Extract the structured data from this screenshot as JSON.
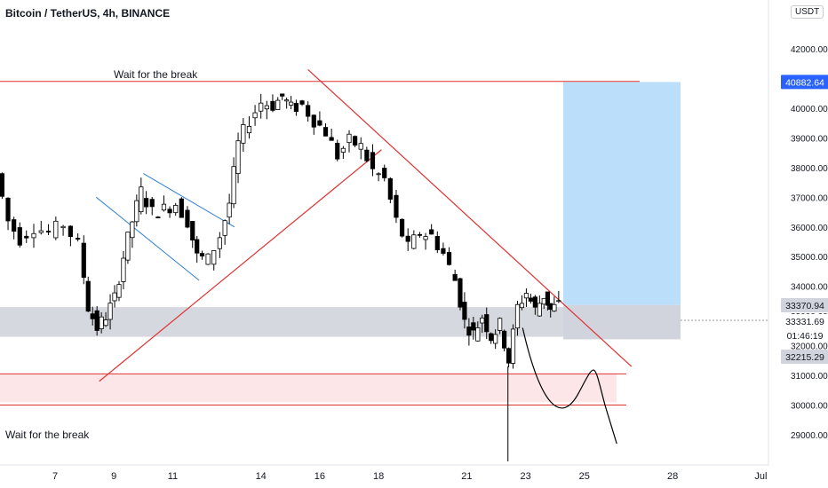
{
  "header": {
    "title": "Bitcoin / TetherUS, 4h, BINANCE"
  },
  "price_scale": {
    "unit": "USDT"
  },
  "colors": {
    "up_candle": "#ffffff",
    "down_candle": "#000000",
    "candle_border": "#000000",
    "trendline": "#e03030",
    "channel": "#2d7fd3",
    "target_box": "#bbdefb",
    "stop_box": "#d1d4dc",
    "support_zone": "#fde3e4"
  },
  "annotations": {
    "top_note": "Wait for the break",
    "bottom_note": "Wait for the break"
  },
  "price_labels": {
    "target": "40882.64",
    "entry": "33370.94",
    "current": "33331.69",
    "countdown": "01:46:19",
    "stop": "32215.29"
  },
  "chart_data": {
    "type": "candlestick",
    "title": "Bitcoin / TetherUS, 4h, BINANCE",
    "y_unit": "USDT",
    "ylim": [
      28800,
      43000
    ],
    "yticks": [
      "29000.00",
      "30000.00",
      "31000.00",
      "32000.00",
      "33000.00",
      "34000.00",
      "35000.00",
      "36000.00",
      "37000.00",
      "38000.00",
      "39000.00",
      "40000.00",
      "41000.00",
      "42000.00"
    ],
    "xticks": [
      {
        "label": "7",
        "day": 7
      },
      {
        "label": "9",
        "day": 9
      },
      {
        "label": "11",
        "day": 11
      },
      {
        "label": "14",
        "day": 14
      },
      {
        "label": "16",
        "day": 16
      },
      {
        "label": "18",
        "day": 18
      },
      {
        "label": "21",
        "day": 21
      },
      {
        "label": "23",
        "day": 23
      },
      {
        "label": "25",
        "day": 25
      },
      {
        "label": "28",
        "day": 28
      },
      {
        "label": "Jul",
        "day": 31
      }
    ],
    "candles_daily_path": [
      [
        5.1,
        37800
      ],
      [
        5.5,
        36200
      ],
      [
        5.9,
        35600
      ],
      [
        6.4,
        36000
      ],
      [
        6.9,
        35800
      ],
      [
        7.4,
        36100
      ],
      [
        7.9,
        35400
      ],
      [
        8.2,
        33300
      ],
      [
        8.5,
        32600
      ],
      [
        8.8,
        33000
      ],
      [
        9.1,
        33600
      ],
      [
        9.4,
        35000
      ],
      [
        9.7,
        36200
      ],
      [
        10.0,
        37200
      ],
      [
        10.4,
        36500
      ],
      [
        10.8,
        36600
      ],
      [
        11.2,
        36800
      ],
      [
        11.6,
        36200
      ],
      [
        11.9,
        35000
      ],
      [
        12.3,
        34900
      ],
      [
        12.7,
        35700
      ],
      [
        13.0,
        36800
      ],
      [
        13.3,
        38800
      ],
      [
        13.7,
        39600
      ],
      [
        14.1,
        40200
      ],
      [
        14.5,
        40100
      ],
      [
        14.8,
        40400
      ],
      [
        15.1,
        40000
      ],
      [
        15.5,
        40100
      ],
      [
        15.9,
        39600
      ],
      [
        16.3,
        39200
      ],
      [
        16.7,
        38400
      ],
      [
        17.1,
        38900
      ],
      [
        17.5,
        38700
      ],
      [
        17.9,
        37900
      ],
      [
        18.3,
        37600
      ],
      [
        18.7,
        36200
      ],
      [
        19.1,
        35300
      ],
      [
        19.5,
        35800
      ],
      [
        19.9,
        35700
      ],
      [
        20.3,
        35100
      ],
      [
        20.7,
        34200
      ],
      [
        21.0,
        32800
      ],
      [
        21.3,
        32400
      ],
      [
        21.6,
        33000
      ],
      [
        21.9,
        32300
      ],
      [
        22.2,
        32700
      ],
      [
        22.5,
        31500
      ],
      [
        22.8,
        33300
      ],
      [
        23.1,
        33800
      ],
      [
        23.4,
        33200
      ],
      [
        23.7,
        33700
      ],
      [
        23.9,
        33200
      ],
      [
        24.2,
        33370
      ]
    ],
    "trendlines": [
      {
        "name": "descending",
        "from": [
          15.6,
          41300
        ],
        "to": [
          26.6,
          31300
        ]
      },
      {
        "name": "ascending",
        "from": [
          8.5,
          30800
        ],
        "to": [
          18.1,
          38600
        ]
      }
    ],
    "channel": [
      {
        "from": [
          10.0,
          37800
        ],
        "to": [
          13.1,
          36000
        ]
      },
      {
        "from": [
          8.4,
          37000
        ],
        "to": [
          11.9,
          34200
        ]
      }
    ],
    "levels": [
      {
        "name": "resistance",
        "price": 40900
      },
      {
        "name": "support",
        "price": 31050
      },
      {
        "name": "lower",
        "price": 30000
      }
    ],
    "zones": [
      {
        "name": "grey_zone",
        "from_price": 32300,
        "to_price": 33300
      },
      {
        "name": "pink_zone",
        "from_price": 30100,
        "to_price": 31050
      }
    ],
    "position": {
      "type": "long",
      "entry": 33370.94,
      "target": 40882.64,
      "stop": 32215.29
    },
    "grid": false,
    "legend": "none"
  }
}
